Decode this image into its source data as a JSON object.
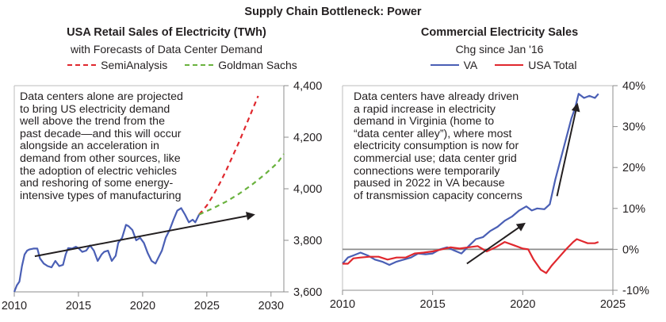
{
  "title": "Supply Chain Bottleneck: Power",
  "chart_data": [
    {
      "type": "line",
      "title": "USA Retail Sales of Electricity (TWh)",
      "subtitle": "with Forecasts of Data Center Demand",
      "xlabel": "",
      "ylabel": "",
      "xlim": [
        2010,
        2031
      ],
      "ylim": [
        3600,
        4400
      ],
      "xticks": [
        2010,
        2015,
        2020,
        2025,
        2030
      ],
      "yticks": [
        3600,
        3800,
        4000,
        4200,
        4400
      ],
      "ytick_labels": [
        "3,600",
        "3,800",
        "4,000",
        "4,200",
        "4,400"
      ],
      "y_axis_side": "right",
      "legend": {
        "placement": "top",
        "entries": [
          {
            "name": "SemiAnalysis",
            "style": "dashed",
            "color": "#e0282e"
          },
          {
            "name": "Goldman Sachs",
            "style": "dashed",
            "color": "#6ab23e"
          }
        ]
      },
      "annotation": "Data centers alone are projected\nto bring US electricity demand\nwell above the trend from the\npast decade—and this will occur\nalongside an acceleration in\ndemand from other sources, like\nthe adoption of electric vehicles\nand reshoring of some energy-\nintensive types of manufacturing",
      "series": [
        {
          "name": "USA Retail Sales",
          "color": "#4a5fb5",
          "style": "solid",
          "x": [
            2010.0,
            2010.2,
            2010.4,
            2010.6,
            2010.8,
            2011.0,
            2011.2,
            2011.5,
            2011.8,
            2012.0,
            2012.3,
            2012.6,
            2012.9,
            2013.2,
            2013.5,
            2013.8,
            2014.0,
            2014.2,
            2014.5,
            2014.8,
            2015.0,
            2015.3,
            2015.6,
            2015.9,
            2016.2,
            2016.5,
            2016.8,
            2017.0,
            2017.3,
            2017.6,
            2017.9,
            2018.1,
            2018.4,
            2018.7,
            2018.9,
            2019.2,
            2019.5,
            2019.8,
            2020.1,
            2020.4,
            2020.7,
            2021.0,
            2021.2,
            2021.5,
            2021.8,
            2022.1,
            2022.4,
            2022.7,
            2023.0,
            2023.3,
            2023.6,
            2023.9,
            2024.1,
            2024.4
          ],
          "y": [
            3600,
            3625,
            3640,
            3700,
            3745,
            3760,
            3765,
            3768,
            3768,
            3730,
            3710,
            3700,
            3695,
            3720,
            3700,
            3705,
            3745,
            3770,
            3768,
            3775,
            3770,
            3755,
            3760,
            3780,
            3760,
            3720,
            3745,
            3755,
            3760,
            3720,
            3740,
            3790,
            3810,
            3860,
            3855,
            3840,
            3800,
            3810,
            3790,
            3750,
            3720,
            3710,
            3730,
            3760,
            3810,
            3840,
            3880,
            3915,
            3925,
            3900,
            3870,
            3880,
            3870,
            3900
          ]
        },
        {
          "name": "SemiAnalysis",
          "color": "#e0282e",
          "style": "dashed",
          "x": [
            2024.4,
            2025.0,
            2025.5,
            2026.0,
            2026.5,
            2027.0,
            2027.5,
            2028.0,
            2028.5,
            2029.0
          ],
          "y": [
            3900,
            3935,
            3975,
            4020,
            4070,
            4125,
            4180,
            4240,
            4300,
            4360
          ]
        },
        {
          "name": "Goldman Sachs",
          "color": "#6ab23e",
          "style": "dashed",
          "x": [
            2024.4,
            2025.5,
            2026.5,
            2027.5,
            2028.5,
            2029.5,
            2030.5,
            2031.0
          ],
          "y": [
            3900,
            3925,
            3950,
            3980,
            4015,
            4055,
            4100,
            4135
          ]
        },
        {
          "name": "Trend arrow",
          "color": "#231f20",
          "style": "arrow",
          "x": [
            2011.6,
            2028.5
          ],
          "y": [
            3738,
            3898
          ]
        }
      ]
    },
    {
      "type": "line",
      "title": "Commercial Electricity Sales",
      "subtitle": "Chg since Jan '16",
      "xlabel": "",
      "ylabel": "",
      "xlim": [
        2010,
        2025
      ],
      "ylim": [
        -10,
        40
      ],
      "xticks": [
        2010,
        2015,
        2020,
        2025
      ],
      "yticks": [
        -10,
        0,
        10,
        20,
        30,
        40
      ],
      "ytick_labels": [
        "-10%",
        "0%",
        "10%",
        "20%",
        "30%",
        "40%"
      ],
      "y_axis_side": "right",
      "legend": {
        "placement": "top",
        "entries": [
          {
            "name": "VA",
            "style": "solid",
            "color": "#4a5fb5"
          },
          {
            "name": "USA Total",
            "style": "solid",
            "color": "#e0282e"
          }
        ]
      },
      "annotation": "Data centers have already driven\na rapid increase in electricity\ndemand in Virginia (home to\n“data center alley”), where most\nelectricity consumption is now for\ncommercial use; data center grid\nconnections were temporarily\npaused in 2022 in VA because\nof transmission capacity concerns",
      "series": [
        {
          "name": "VA",
          "color": "#4a5fb5",
          "style": "solid",
          "x": [
            2010.0,
            2010.3,
            2010.6,
            2011.0,
            2011.4,
            2011.8,
            2012.2,
            2012.6,
            2013.0,
            2013.4,
            2013.8,
            2014.2,
            2014.6,
            2015.0,
            2015.4,
            2015.8,
            2016.2,
            2016.6,
            2017.0,
            2017.4,
            2017.8,
            2018.2,
            2018.6,
            2019.0,
            2019.4,
            2019.8,
            2020.2,
            2020.5,
            2020.8,
            2021.2,
            2021.5,
            2021.8,
            2022.1,
            2022.4,
            2022.7,
            2022.9,
            2023.1,
            2023.4,
            2023.7,
            2024.0,
            2024.2
          ],
          "y": [
            -3.5,
            -2.0,
            -1.5,
            -0.8,
            -1.5,
            -2.5,
            -3.0,
            -3.8,
            -3.0,
            -2.5,
            -2.0,
            -1.0,
            -1.2,
            -1.0,
            0.0,
            0.5,
            -0.3,
            -1.0,
            0.8,
            2.5,
            3.0,
            4.5,
            5.5,
            7.0,
            8.0,
            9.5,
            10.5,
            9.5,
            10.0,
            9.8,
            11.0,
            17.0,
            22.0,
            27.0,
            32.0,
            34.5,
            38.0,
            37.0,
            37.5,
            37.0,
            38.0
          ]
        },
        {
          "name": "USA Total",
          "color": "#e0282e",
          "style": "solid",
          "x": [
            2010.0,
            2010.3,
            2010.6,
            2011.0,
            2011.5,
            2012.0,
            2012.5,
            2013.0,
            2013.5,
            2014.0,
            2014.5,
            2015.0,
            2015.5,
            2016.0,
            2016.5,
            2017.0,
            2017.5,
            2018.0,
            2018.5,
            2019.0,
            2019.5,
            2020.0,
            2020.3,
            2020.6,
            2021.0,
            2021.3,
            2021.6,
            2022.0,
            2022.4,
            2022.8,
            2023.0,
            2023.3,
            2023.6,
            2024.0,
            2024.2
          ],
          "y": [
            -3.5,
            -3.5,
            -2.2,
            -2.0,
            -1.8,
            -1.8,
            -2.5,
            -2.0,
            -2.0,
            -1.0,
            -0.8,
            -0.5,
            0.0,
            0.5,
            0.2,
            0.5,
            0.8,
            -0.5,
            0.5,
            1.8,
            1.0,
            0.2,
            0.0,
            -2.5,
            -5.0,
            -5.8,
            -4.0,
            -2.0,
            0.0,
            1.8,
            2.5,
            2.0,
            1.5,
            1.5,
            1.8
          ]
        },
        {
          "name": "Arrow 1",
          "color": "#231f20",
          "style": "arrow",
          "x": [
            2016.9,
            2020.0
          ],
          "y": [
            -3.5,
            6.0
          ]
        },
        {
          "name": "Arrow 2",
          "color": "#231f20",
          "style": "arrow",
          "x": [
            2021.9,
            2023.0
          ],
          "y": [
            13.0,
            35.0
          ]
        }
      ]
    }
  ]
}
